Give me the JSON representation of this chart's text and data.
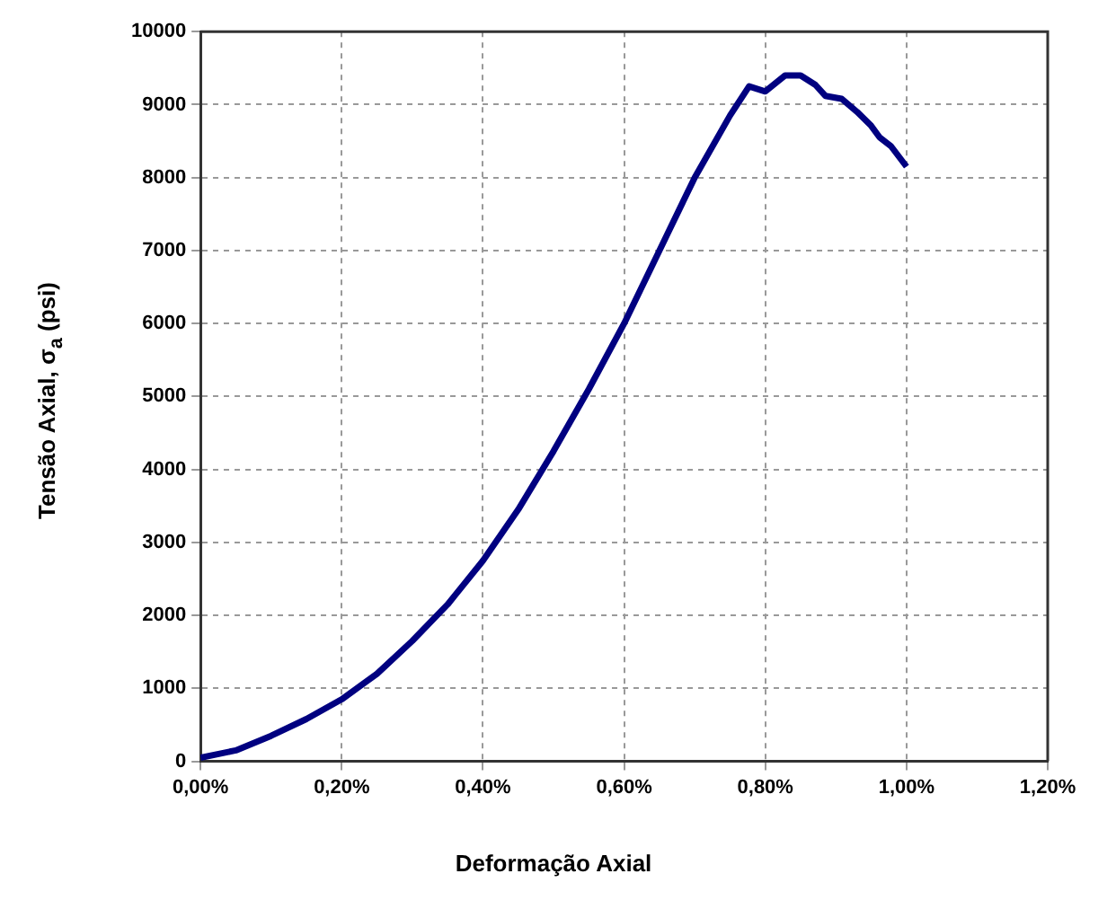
{
  "chart_data": {
    "type": "line",
    "xlabel": "Deformação Axial",
    "ylabel": "Tensão Axial, σ$_{a}$ (psi)",
    "x": [
      0,
      0.05,
      0.1,
      0.15,
      0.2,
      0.25,
      0.3,
      0.35,
      0.4,
      0.45,
      0.5,
      0.55,
      0.6,
      0.65,
      0.7,
      0.75,
      0.777,
      0.8,
      0.828,
      0.85,
      0.871,
      0.885,
      0.908,
      0.93,
      0.949,
      0.962,
      0.978,
      1.0
    ],
    "series": [
      {
        "color": "#000080",
        "values": [
          50,
          150,
          350,
          580,
          850,
          1200,
          1650,
          2150,
          2750,
          3450,
          4250,
          5100,
          6000,
          7000,
          8000,
          8850,
          9250,
          9180,
          9400,
          9400,
          9270,
          9120,
          9080,
          8900,
          8720,
          8550,
          8430,
          8150
        ]
      }
    ],
    "xlim": [
      0,
      1.2
    ],
    "xticks": [
      {
        "value": 0,
        "label": "0,00%"
      },
      {
        "value": 0.2,
        "label": "0,20%"
      },
      {
        "value": 0.4,
        "label": "0,40%"
      },
      {
        "value": 0.6,
        "label": "0,60%"
      },
      {
        "value": 0.8,
        "label": "0,80%"
      },
      {
        "value": 1.0,
        "label": "1,00%"
      },
      {
        "value": 1.2,
        "label": "1,20%"
      }
    ],
    "ylim": [
      0,
      10000
    ],
    "yticks": [
      0,
      1000,
      2000,
      3000,
      4000,
      5000,
      6000,
      7000,
      8000,
      9000,
      10000
    ],
    "grid": true,
    "legend": false,
    "marker": "none",
    "line_style": "solid"
  }
}
